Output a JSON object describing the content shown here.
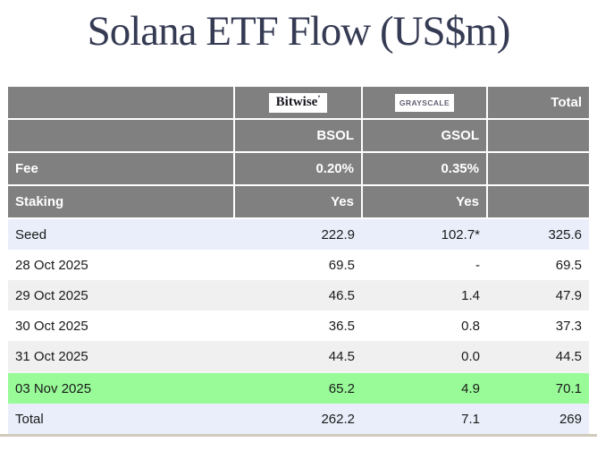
{
  "page": {
    "title": "Solana ETF Flow (US$m)"
  },
  "table": {
    "issuers": {
      "bitwise_logo": "Bitwise",
      "grayscale_logo": "GRAYSCALE",
      "total_label": "Total"
    },
    "tickers": {
      "bsol": "BSOL",
      "gsol": "GSOL"
    },
    "fee": {
      "label": "Fee",
      "bsol": "0.20%",
      "gsol": "0.35%"
    },
    "staking": {
      "label": "Staking",
      "bsol": "Yes",
      "gsol": "Yes"
    },
    "rows": [
      {
        "label": "Seed",
        "bsol": "222.9",
        "gsol": "102.7*",
        "total": "325.6",
        "style": "seed"
      },
      {
        "label": "28 Oct 2025",
        "bsol": "69.5",
        "gsol": "-",
        "total": "69.5",
        "style": "white"
      },
      {
        "label": "29 Oct 2025",
        "bsol": "46.5",
        "gsol": "1.4",
        "total": "47.9",
        "style": "gray"
      },
      {
        "label": "30 Oct 2025",
        "bsol": "36.5",
        "gsol": "0.8",
        "total": "37.3",
        "style": "white"
      },
      {
        "label": "31 Oct 2025",
        "bsol": "44.5",
        "gsol": "0.0",
        "total": "44.5",
        "style": "gray"
      },
      {
        "label": "03 Nov 2025",
        "bsol": "65.2",
        "gsol": "4.9",
        "total": "70.1",
        "style": "green"
      },
      {
        "label": "Total",
        "bsol": "262.2",
        "gsol": "7.1",
        "total": "269",
        "style": "total"
      }
    ]
  },
  "colors": {
    "title_color": "#363b54",
    "header_bg": "#808080",
    "header_text": "#ffffff",
    "seed_total_bg": "#e9eefa",
    "alt_row_bg": "#f0f0f0",
    "highlight_green": "#98fb98",
    "bottom_border": "#d0cabc",
    "grayscale_logo_text": "#615f73"
  },
  "chart_data": {
    "type": "table",
    "title": "Solana ETF Flow (US$m)",
    "columns": [
      "",
      "Bitwise BSOL",
      "Grayscale GSOL",
      "Total"
    ],
    "fund_meta": {
      "fee": {
        "BSOL": "0.20%",
        "GSOL": "0.35%"
      },
      "staking": {
        "BSOL": "Yes",
        "GSOL": "Yes"
      }
    },
    "rows": [
      [
        "Seed",
        222.9,
        "102.7*",
        325.6
      ],
      [
        "28 Oct 2025",
        69.5,
        "-",
        69.5
      ],
      [
        "29 Oct 2025",
        46.5,
        1.4,
        47.9
      ],
      [
        "30 Oct 2025",
        36.5,
        0.8,
        37.3
      ],
      [
        "31 Oct 2025",
        44.5,
        0.0,
        44.5
      ],
      [
        "03 Nov 2025",
        65.2,
        4.9,
        70.1
      ],
      [
        "Total",
        262.2,
        7.1,
        269
      ]
    ],
    "notes": [
      "highlighted row: 03 Nov 2025 (most recent flow)",
      "* on Grayscale seed value"
    ]
  }
}
